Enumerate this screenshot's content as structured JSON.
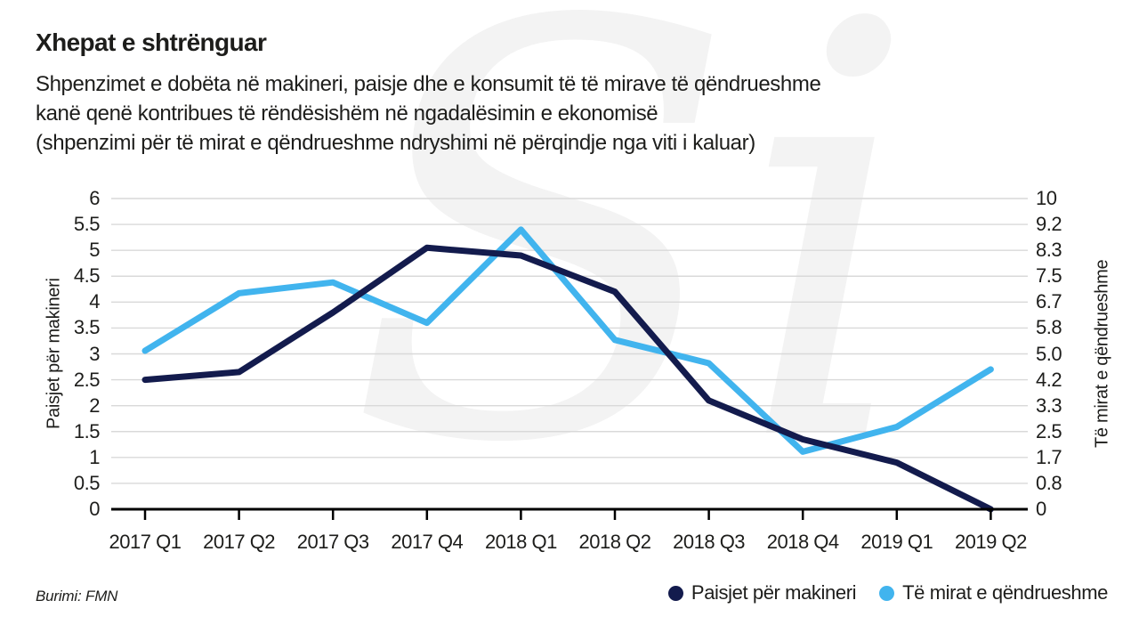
{
  "header": {
    "title": "Xhepat e shtrënguar",
    "subtitle_lines": [
      "Shpenzimet e dobëta në makineri, paisje dhe e konsumit të të mirave të qëndrueshme",
      "kanë qenë kontribues të rëndësishëm në ngadalësimin e ekonomisë",
      "(shpenzimi për të mirat e qëndrueshme ndryshimi në përqindje nga viti i kaluar)"
    ]
  },
  "watermark": "Si",
  "source_note": "Burimi: FMN",
  "colors": {
    "machinery_line": "#131b4d",
    "durables_line": "#41b4ee",
    "gridline": "#d9d9d9",
    "axis": "#000000",
    "text": "#1d1d1b",
    "watermark": "#f3f3f3"
  },
  "chart_data": {
    "type": "line",
    "categories": [
      "2017 Q1",
      "2017 Q2",
      "2017 Q3",
      "2017 Q4",
      "2018 Q1",
      "2018 Q2",
      "2018 Q3",
      "2018 Q4",
      "2019 Q1",
      "2019 Q2"
    ],
    "series": [
      {
        "name": "Paisjet për makineri",
        "axis": "left",
        "color": "#131b4d",
        "values": [
          2.5,
          2.65,
          3.8,
          5.05,
          4.9,
          4.2,
          2.1,
          1.35,
          0.9,
          0
        ]
      },
      {
        "name": "Të mirat e qëndrueshme",
        "axis": "right",
        "color": "#41b4ee",
        "values": [
          5.1,
          6.95,
          7.3,
          6.0,
          9.0,
          5.45,
          4.7,
          1.85,
          2.65,
          4.5
        ]
      }
    ],
    "left_axis": {
      "label": "Paisjet për makineri",
      "range": [
        0,
        6
      ],
      "tick_labels": [
        "6",
        "5.5",
        "5",
        "4.5",
        "4",
        "3.5",
        "3",
        "2.5",
        "2",
        "1.5",
        "1",
        "0.5",
        "0"
      ]
    },
    "right_axis": {
      "label": "Të mirat e qëndrueshme",
      "range": [
        0,
        10
      ],
      "tick_labels": [
        "10",
        "9.2",
        "8.3",
        "7.5",
        "6.7",
        "5.8",
        "5.0",
        "4.2",
        "3.3",
        "2.5",
        "1.7",
        "0.8",
        "0"
      ]
    },
    "grid": true,
    "legend_position": "bottom-right"
  }
}
